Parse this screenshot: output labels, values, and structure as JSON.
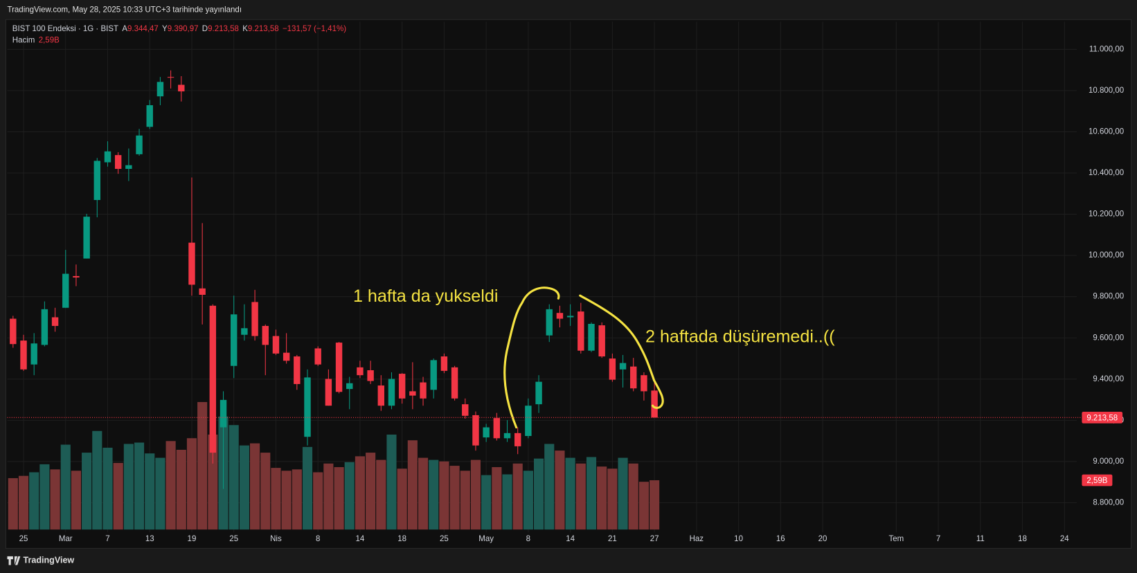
{
  "header": {
    "published": "TradingView.com, May 28, 2025 10:33 UTC+3 tarihinde yayınlandı",
    "logo": "TradingView"
  },
  "chart_data": {
    "type": "candlestick",
    "legend": {
      "symbol": "BIST 100 Endeksi · 1G · BIST",
      "open_key": "A",
      "open": "9.344,47",
      "high_key": "Y",
      "high": "9.390,97",
      "low_key": "D",
      "low": "9.213,58",
      "close_key": "K",
      "close": "9.213,58",
      "change": "−131,57 (−1,41%)",
      "volume_key": "Hacim",
      "volume": "2,59B"
    },
    "up_color": "#089981",
    "down_color": "#f23645",
    "volume_up_color": "#1d5c55",
    "volume_down_color": "#7a3535",
    "open": [
      9693,
      9587,
      9471,
      9566,
      9700,
      9746,
      9900,
      9985,
      10269,
      10452,
      10487,
      10420,
      10491,
      10624,
      10772,
      10866,
      10828,
      10062,
      9840,
      9756,
      9166,
      9464,
      9615,
      9774,
      9658,
      9609,
      9528,
      9510,
      9120,
      9549,
      9401,
      9577,
      9352,
      9457,
      9443,
      9369,
      9271,
      9426,
      9341,
      9384,
      9348,
      9510,
      9457,
      9278,
      9225,
      9117,
      9211,
      9113,
      9138,
      9124,
      9278,
      9612,
      9721,
      9700,
      9728,
      9538,
      9661,
      9500,
      9447,
      9461,
      9419,
      9344.47
    ],
    "high": [
      9707,
      9615,
      9623,
      9777,
      9746,
      10027,
      9956,
      10202,
      10473,
      10554,
      10501,
      10519,
      10614,
      10754,
      10866,
      10898,
      10870,
      10378,
      10157,
      9763,
      9341,
      9805,
      9763,
      9833,
      9665,
      9640,
      9623,
      9517,
      9447,
      9559,
      9447,
      9580,
      9411,
      9489,
      9489,
      9419,
      9433,
      9429,
      9482,
      9411,
      9500,
      9524,
      9464,
      9306,
      9243,
      9183,
      9236,
      9201,
      9166,
      9306,
      9419,
      9763,
      9756,
      9763,
      9770,
      9675,
      9675,
      9524,
      9517,
      9503,
      9433,
      9390.97
    ],
    "low": [
      9552,
      9440,
      9419,
      9559,
      9630,
      9746,
      9851,
      9985,
      10185,
      10431,
      10396,
      10361,
      10484,
      10614,
      10729,
      10810,
      10747,
      9805,
      9665,
      8990,
      8867,
      9405,
      9587,
      9587,
      9419,
      9517,
      9475,
      9348,
      9078,
      9464,
      9271,
      9331,
      9254,
      9405,
      9376,
      9246,
      9254,
      9281,
      9254,
      9271,
      9306,
      9429,
      9296,
      9208,
      9053,
      9095,
      9102,
      9095,
      9036,
      9113,
      9236,
      9580,
      9651,
      9658,
      9524,
      9531,
      9503,
      9387,
      9359,
      9341,
      9296,
      9213.58
    ],
    "close": [
      9570,
      9447,
      9573,
      9739,
      9658,
      9911,
      9893,
      10188,
      10459,
      10505,
      10420,
      10438,
      10582,
      10729,
      10842,
      10863,
      10796,
      9858,
      9809,
      9043,
      9299,
      9714,
      9647,
      9609,
      9566,
      9524,
      9489,
      9376,
      9408,
      9471,
      9271,
      9338,
      9380,
      9419,
      9391,
      9271,
      9401,
      9306,
      9320,
      9306,
      9492,
      9440,
      9306,
      9222,
      9078,
      9166,
      9113,
      9138,
      9074,
      9271,
      9387,
      9739,
      9693,
      9707,
      9538,
      9668,
      9510,
      9397,
      9478,
      9355,
      9341,
      9213.58
    ],
    "volume": [
      2.7,
      2.82,
      3.01,
      3.43,
      3.16,
      4.46,
      3.09,
      4.04,
      5.18,
      4.3,
      3.5,
      4.5,
      4.57,
      4.0,
      3.77,
      4.65,
      4.19,
      4.8,
      6.7,
      4.99,
      5.94,
      5.49,
      4.42,
      4.53,
      4.04,
      3.24,
      3.09,
      3.16,
      4.34,
      3.01,
      3.47,
      3.28,
      3.54,
      3.85,
      4.04,
      3.66,
      4.99,
      3.2,
      4.69,
      3.77,
      3.66,
      3.58,
      3.35,
      3.09,
      3.66,
      2.86,
      3.28,
      2.9,
      3.47,
      3.09,
      3.73,
      4.5,
      4.15,
      3.77,
      3.47,
      3.81,
      3.31,
      3.2,
      3.77,
      3.47,
      2.51,
      2.59
    ],
    "last_price_label": "9.213,58",
    "last_volume_label": "2,59B",
    "ylim": [
      8656,
      11134
    ],
    "yticks": [
      {
        "value": 8800,
        "label": "8.800,00"
      },
      {
        "value": 9000,
        "label": "9.000,00"
      },
      {
        "value": 9200,
        "label": "9.200,00"
      },
      {
        "value": 9400,
        "label": "9.400,00"
      },
      {
        "value": 9600,
        "label": "9.600,00"
      },
      {
        "value": 9800,
        "label": "9.800,00"
      },
      {
        "value": 10000,
        "label": "10.000,00"
      },
      {
        "value": 10200,
        "label": "10.200,00"
      },
      {
        "value": 10400,
        "label": "10.400,00"
      },
      {
        "value": 10600,
        "label": "10.600,00"
      },
      {
        "value": 10800,
        "label": "10.800,00"
      },
      {
        "value": 11000,
        "label": "11.000,00"
      }
    ],
    "xlim": [
      -0.55,
      101.17
    ],
    "xticks": [
      {
        "value": 1,
        "label": "25"
      },
      {
        "value": 5,
        "label": "Mar"
      },
      {
        "value": 9,
        "label": "7"
      },
      {
        "value": 13,
        "label": "13"
      },
      {
        "value": 17,
        "label": "19"
      },
      {
        "value": 21,
        "label": "25"
      },
      {
        "value": 25,
        "label": "Nis"
      },
      {
        "value": 29,
        "label": "8"
      },
      {
        "value": 33,
        "label": "14"
      },
      {
        "value": 37,
        "label": "18"
      },
      {
        "value": 41,
        "label": "25"
      },
      {
        "value": 45,
        "label": "May"
      },
      {
        "value": 49,
        "label": "8"
      },
      {
        "value": 53,
        "label": "14"
      },
      {
        "value": 57,
        "label": "21"
      },
      {
        "value": 61,
        "label": "27"
      },
      {
        "value": 65,
        "label": "Haz"
      },
      {
        "value": 69,
        "label": "10"
      },
      {
        "value": 73,
        "label": "16"
      },
      {
        "value": 77,
        "label": "20"
      },
      {
        "value": 84,
        "label": "Tem"
      },
      {
        "value": 88,
        "label": "7"
      },
      {
        "value": 92,
        "label": "11"
      },
      {
        "value": 96,
        "label": "18"
      },
      {
        "value": 100,
        "label": "24"
      }
    ],
    "grid": true,
    "annotations": [
      "1 hafta da yukseldi",
      "2 haftada düşüremedi..(("
    ]
  }
}
